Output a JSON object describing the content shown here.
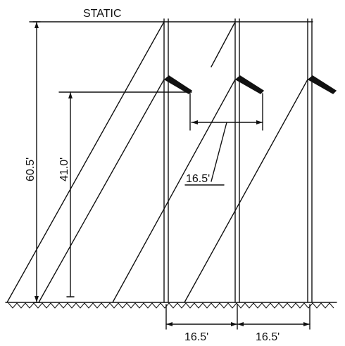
{
  "diagram": {
    "top_label": "STATIC",
    "height_static": "60.5'",
    "height_arm": "41.0'",
    "arm_spacing": "16.5'",
    "bottom_spacing_left": "16.5'",
    "bottom_spacing_right": "16.5'"
  },
  "colors": {
    "line": "#111111",
    "background": "#ffffff"
  }
}
